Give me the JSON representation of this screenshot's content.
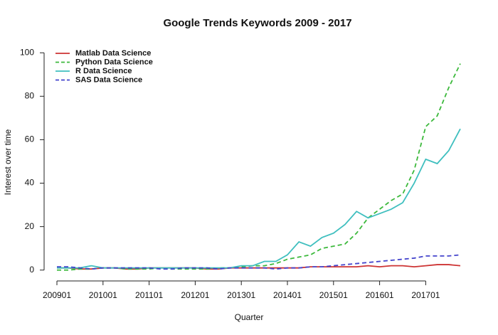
{
  "chart_data": {
    "type": "line",
    "title": "Google Trends Keywords 2009 - 2017",
    "x_label": "Quarter",
    "y_label": "Interest over time",
    "categories": [
      "200901",
      null,
      null,
      null,
      "201001",
      null,
      null,
      null,
      "201101",
      null,
      null,
      null,
      "201201",
      null,
      null,
      null,
      "201301",
      null,
      null,
      null,
      "201401",
      null,
      null,
      null,
      "201501",
      null,
      null,
      null,
      "201601",
      null,
      null,
      null,
      "201701",
      null,
      null,
      null
    ],
    "series": [
      {
        "name": "Matlab Data Science",
        "color": "#cd3333",
        "dashed": false,
        "values": [
          1,
          1,
          0.5,
          0.5,
          1,
          1,
          0.5,
          0.5,
          1,
          1,
          1,
          1,
          1,
          0.5,
          0.5,
          1,
          1,
          1,
          1,
          1,
          1,
          1,
          1.5,
          1.5,
          1.5,
          1.5,
          1.5,
          2,
          1.5,
          2,
          2,
          1.5,
          2,
          2.5,
          2.5,
          2
        ]
      },
      {
        "name": "Python Data Science",
        "color": "#3cb93c",
        "dashed": true,
        "values": [
          0,
          0,
          0.5,
          0.5,
          1,
          1,
          0.5,
          0.5,
          0.5,
          1,
          0.5,
          0.5,
          0.5,
          0.5,
          1,
          1,
          1.5,
          2,
          2,
          3,
          5,
          6,
          7,
          10,
          11,
          12,
          17,
          24,
          28,
          32,
          35,
          46,
          66,
          71,
          84,
          95
        ]
      },
      {
        "name": "R Data Science",
        "color": "#3fbfbf",
        "dashed": false,
        "values": [
          1,
          1,
          1,
          2,
          1,
          1,
          1,
          1,
          1,
          1,
          1,
          1,
          1,
          1,
          1,
          1,
          2,
          2,
          4,
          4,
          7,
          13,
          11,
          15,
          17,
          21,
          27,
          24,
          26,
          28,
          31,
          40,
          51,
          49,
          55,
          65
        ]
      },
      {
        "name": "SAS Data Science",
        "color": "#4444cc",
        "dashed": true,
        "values": [
          1.5,
          1.5,
          1,
          0.5,
          1,
          1,
          1,
          1,
          1,
          0.5,
          0.5,
          1,
          1,
          1,
          0.5,
          1,
          1,
          1,
          1,
          0.5,
          1,
          1,
          1.5,
          1.5,
          2,
          2.5,
          3,
          3.5,
          4,
          4.5,
          5,
          5.5,
          6.5,
          6.5,
          6.5,
          7
        ]
      }
    ],
    "ylim": [
      -5,
      104
    ],
    "yticks": [
      0,
      20,
      40,
      60,
      80,
      100
    ],
    "legend": "top-left"
  }
}
